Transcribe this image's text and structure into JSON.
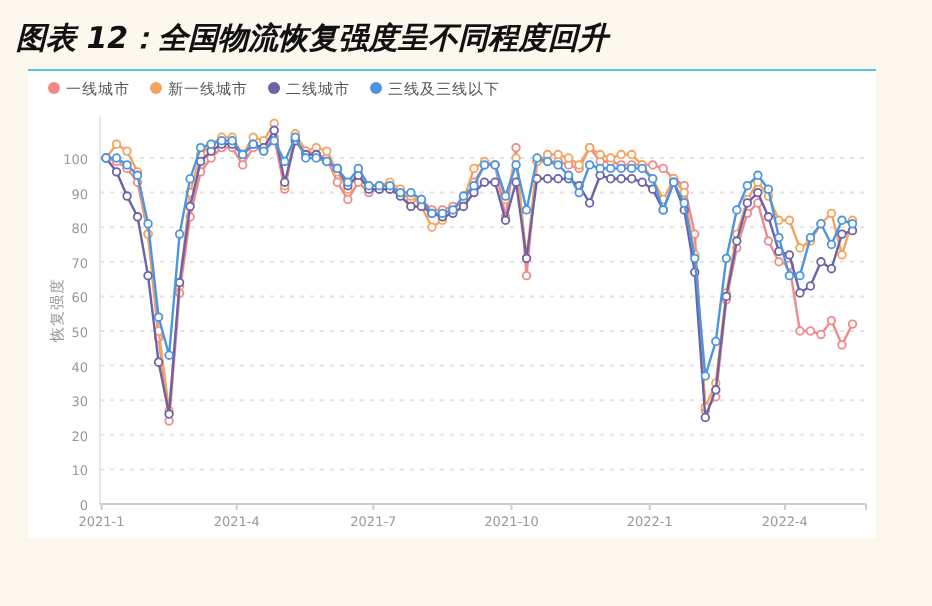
{
  "chart_data": {
    "type": "line",
    "title": "图表 12：全国物流恢复强度呈不同程度回升",
    "ylabel": "恢复强度",
    "marker": "circle",
    "line_style": "solid",
    "grid": "y",
    "legend": "top left",
    "x": [
      "2021-01-04",
      "2021-01-11",
      "2021-01-18",
      "2021-01-25",
      "2021-02-01",
      "2021-02-08",
      "2021-02-15",
      "2021-02-22",
      "2021-03-01",
      "2021-03-08",
      "2021-03-15",
      "2021-03-22",
      "2021-03-29",
      "2021-04-05",
      "2021-04-12",
      "2021-04-19",
      "2021-04-26",
      "2021-05-03",
      "2021-05-10",
      "2021-05-17",
      "2021-05-24",
      "2021-05-31",
      "2021-06-07",
      "2021-06-14",
      "2021-06-21",
      "2021-06-28",
      "2021-07-05",
      "2021-07-12",
      "2021-07-19",
      "2021-07-26",
      "2021-08-02",
      "2021-08-09",
      "2021-08-16",
      "2021-08-23",
      "2021-08-30",
      "2021-09-06",
      "2021-09-13",
      "2021-09-20",
      "2021-09-27",
      "2021-10-04",
      "2021-10-11",
      "2021-10-18",
      "2021-10-25",
      "2021-11-01",
      "2021-11-08",
      "2021-11-15",
      "2021-11-22",
      "2021-11-29",
      "2021-12-06",
      "2021-12-13",
      "2021-12-20",
      "2021-12-27",
      "2022-01-03",
      "2022-01-10",
      "2022-01-17",
      "2022-01-24",
      "2022-01-31",
      "2022-02-07",
      "2022-02-14",
      "2022-02-21",
      "2022-02-28",
      "2022-03-07",
      "2022-03-14",
      "2022-03-21",
      "2022-03-28",
      "2022-04-04",
      "2022-04-11",
      "2022-04-18",
      "2022-04-25",
      "2022-05-02",
      "2022-05-09",
      "2022-05-16"
    ],
    "xlim": [
      "2020-12-31",
      "2022-05-25"
    ],
    "xticks": [
      {
        "value": "2021-01-01",
        "label": "2021-1"
      },
      {
        "value": "2021-04-01",
        "label": "2021-4"
      },
      {
        "value": "2021-07-01",
        "label": "2021-7"
      },
      {
        "value": "2021-10-01",
        "label": "2021-10"
      },
      {
        "value": "2022-01-01",
        "label": "2022-1"
      },
      {
        "value": "2022-04-01",
        "label": "2022-4"
      }
    ],
    "ylim": [
      0,
      112
    ],
    "yticks": [
      0,
      10,
      20,
      30,
      40,
      50,
      60,
      70,
      80,
      90,
      100
    ],
    "series": [
      {
        "name": "一线城市",
        "color": "#f08a8a",
        "values": [
          100,
          99,
          97,
          93,
          78,
          48,
          24,
          61,
          83,
          96,
          100,
          103,
          103,
          98,
          103,
          102,
          106,
          91,
          106,
          102,
          101,
          100,
          93,
          88,
          93,
          90,
          91,
          91,
          90,
          88,
          88,
          85,
          85,
          86,
          87,
          93,
          98,
          98,
          83,
          103,
          66,
          99,
          99,
          99,
          98,
          97,
          103,
          99,
          99,
          98,
          98,
          98,
          98,
          97,
          94,
          92,
          78,
          27,
          31,
          59,
          74,
          84,
          87,
          76,
          70,
          69,
          50,
          50,
          49,
          53,
          46,
          52
        ]
      },
      {
        "name": "新一线城市",
        "color": "#f5a45f",
        "values": [
          100,
          104,
          102,
          96,
          78,
          50,
          27,
          63,
          90,
          101,
          104,
          106,
          106,
          101,
          106,
          105,
          110,
          92,
          107,
          102,
          103,
          102,
          96,
          91,
          96,
          92,
          92,
          93,
          91,
          89,
          86,
          80,
          82,
          85,
          88,
          97,
          99,
          98,
          88,
          100,
          71,
          99,
          101,
          101,
          100,
          98,
          103,
          101,
          100,
          101,
          101,
          98,
          94,
          88,
          94,
          90,
          72,
          28,
          35,
          61,
          78,
          88,
          93,
          89,
          82,
          82,
          74,
          76,
          81,
          84,
          72,
          82
        ]
      },
      {
        "name": "二线城市",
        "color": "#6b62a8",
        "values": [
          100,
          96,
          89,
          83,
          66,
          41,
          26,
          64,
          86,
          99,
          102,
          104,
          104,
          101,
          104,
          103,
          108,
          93,
          105,
          101,
          101,
          99,
          97,
          92,
          95,
          91,
          91,
          91,
          89,
          86,
          86,
          84,
          83,
          84,
          86,
          90,
          93,
          93,
          82,
          93,
          71,
          94,
          94,
          94,
          94,
          92,
          87,
          95,
          94,
          94,
          94,
          93,
          91,
          85,
          93,
          85,
          67,
          25,
          33,
          60,
          76,
          87,
          90,
          83,
          73,
          72,
          61,
          63,
          70,
          68,
          78,
          79
        ]
      },
      {
        "name": "三线及三线以下",
        "color": "#4c96e0",
        "values": [
          100,
          100,
          98,
          95,
          81,
          54,
          43,
          78,
          94,
          103,
          104,
          105,
          105,
          101,
          104,
          102,
          105,
          99,
          106,
          100,
          100,
          99,
          97,
          93,
          97,
          92,
          92,
          92,
          90,
          90,
          88,
          84,
          84,
          85,
          89,
          92,
          98,
          98,
          89,
          98,
          85,
          100,
          99,
          98,
          95,
          90,
          98,
          97,
          97,
          97,
          97,
          97,
          94,
          85,
          93,
          87,
          71,
          37,
          47,
          71,
          85,
          92,
          95,
          91,
          77,
          66,
          66,
          77,
          81,
          75,
          82,
          81
        ]
      }
    ]
  }
}
